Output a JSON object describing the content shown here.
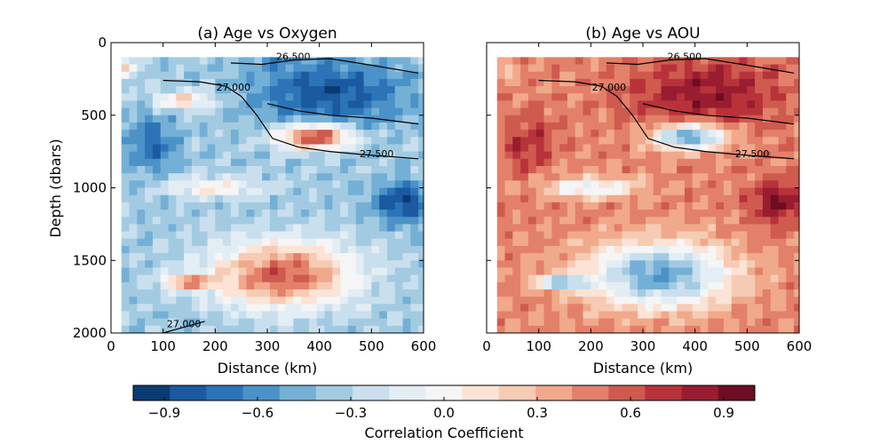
{
  "colors": {
    "diverging_scale": [
      "#0b3b72",
      "#1b5aa1",
      "#2c74b8",
      "#4a92c7",
      "#74b0d6",
      "#a2cbe2",
      "#c9dfee",
      "#e3edf4",
      "#f5f5f5",
      "#fbe3d6",
      "#f6cbb3",
      "#f0a98a",
      "#e3806a",
      "#cf5a4e",
      "#b8323a",
      "#991d30",
      "#6e0d23"
    ],
    "contour": "#000000"
  },
  "chart_data": [
    {
      "type": "heatmap",
      "title": "(a) Age vs Oxygen",
      "xlabel": "Distance (km)",
      "ylabel": "Depth (dbars)",
      "xlim": [
        0,
        600
      ],
      "ylim": [
        2000,
        0
      ],
      "xticks": [
        0,
        100,
        200,
        300,
        400,
        500,
        600
      ],
      "yticks": [
        0,
        500,
        1000,
        1500,
        2000
      ],
      "data_x_range": [
        20,
        600
      ],
      "data_y_range": [
        100,
        2000
      ],
      "background_value": -0.35,
      "features": [
        {
          "x": 420,
          "y": 350,
          "rx": 180,
          "ry": 300,
          "value": -0.85
        },
        {
          "x": 330,
          "y": 150,
          "rx": 80,
          "ry": 70,
          "value": -0.6
        },
        {
          "x": 560,
          "y": 1100,
          "rx": 70,
          "ry": 180,
          "value": -0.9
        },
        {
          "x": 80,
          "y": 700,
          "rx": 60,
          "ry": 250,
          "value": -0.75
        },
        {
          "x": 390,
          "y": 650,
          "rx": 90,
          "ry": 110,
          "value": 0.65
        },
        {
          "x": 140,
          "y": 400,
          "rx": 70,
          "ry": 80,
          "value": 0.2
        },
        {
          "x": 200,
          "y": 1000,
          "rx": 110,
          "ry": 90,
          "value": 0.1
        },
        {
          "x": 330,
          "y": 1600,
          "rx": 170,
          "ry": 280,
          "value": 0.6
        },
        {
          "x": 150,
          "y": 1650,
          "rx": 60,
          "ry": 60,
          "value": 0.6
        },
        {
          "x": 130,
          "y": 1900,
          "rx": 60,
          "ry": 80,
          "value": -0.4
        },
        {
          "x": 30,
          "y": 180,
          "rx": 30,
          "ry": 80,
          "value": 0.1
        }
      ],
      "contours": [
        {
          "label": "26.500",
          "points": [
            [
              230,
              140
            ],
            [
              290,
              150
            ],
            [
              350,
              120
            ],
            [
              420,
              110
            ],
            [
              490,
              150
            ],
            [
              590,
              210
            ]
          ],
          "label_at": [
            350,
            120
          ]
        },
        {
          "label": "27.000",
          "points": [
            [
              100,
              260
            ],
            [
              170,
              270
            ],
            [
              220,
              300
            ],
            [
              250,
              370
            ],
            [
              280,
              500
            ],
            [
              310,
              660
            ],
            [
              360,
              720
            ],
            [
              420,
              750
            ],
            [
              480,
              770
            ],
            [
              590,
              800
            ]
          ],
          "label_at": [
            235,
            330
          ]
        },
        {
          "label": "27.500",
          "points": [
            [
              300,
              420
            ],
            [
              360,
              470
            ],
            [
              420,
              500
            ],
            [
              500,
              520
            ],
            [
              590,
              560
            ]
          ],
          "label_at": [
            510,
            790
          ]
        },
        {
          "label": "27.000",
          "points": [
            [
              100,
              2000
            ],
            [
              130,
              1970
            ],
            [
              180,
              1920
            ]
          ],
          "label_at": [
            140,
            1960
          ]
        }
      ]
    },
    {
      "type": "heatmap",
      "title": "(b) Age vs AOU",
      "xlabel": "Distance (km)",
      "ylabel": "",
      "xlim": [
        0,
        600
      ],
      "ylim": [
        2000,
        0
      ],
      "xticks": [
        0,
        100,
        200,
        300,
        400,
        500,
        600
      ],
      "yticks": [],
      "data_x_range": [
        20,
        600
      ],
      "data_y_range": [
        100,
        2000
      ],
      "background_value": 0.45,
      "features": [
        {
          "x": 420,
          "y": 350,
          "rx": 180,
          "ry": 300,
          "value": 0.85
        },
        {
          "x": 560,
          "y": 1100,
          "rx": 70,
          "ry": 180,
          "value": 0.9
        },
        {
          "x": 80,
          "y": 700,
          "rx": 60,
          "ry": 250,
          "value": 0.75
        },
        {
          "x": 390,
          "y": 650,
          "rx": 90,
          "ry": 110,
          "value": -0.55
        },
        {
          "x": 200,
          "y": 1000,
          "rx": 110,
          "ry": 90,
          "value": -0.1
        },
        {
          "x": 330,
          "y": 1600,
          "rx": 170,
          "ry": 280,
          "value": -0.55
        },
        {
          "x": 150,
          "y": 1650,
          "rx": 60,
          "ry": 60,
          "value": -0.6
        },
        {
          "x": 130,
          "y": 1900,
          "rx": 60,
          "ry": 80,
          "value": 0.4
        },
        {
          "x": 30,
          "y": 180,
          "rx": 30,
          "ry": 80,
          "value": 0.2
        }
      ],
      "contours": [
        {
          "label": "26.500",
          "points": [
            [
              230,
              140
            ],
            [
              290,
              150
            ],
            [
              350,
              120
            ],
            [
              420,
              110
            ],
            [
              490,
              150
            ],
            [
              590,
              210
            ]
          ],
          "label_at": [
            380,
            120
          ]
        },
        {
          "label": "27.000",
          "points": [
            [
              100,
              260
            ],
            [
              170,
              270
            ],
            [
              220,
              300
            ],
            [
              250,
              370
            ],
            [
              280,
              500
            ],
            [
              310,
              660
            ],
            [
              360,
              720
            ],
            [
              420,
              750
            ],
            [
              480,
              770
            ],
            [
              590,
              800
            ]
          ],
          "label_at": [
            235,
            330
          ]
        },
        {
          "label": "27.500",
          "points": [
            [
              300,
              420
            ],
            [
              360,
              470
            ],
            [
              420,
              500
            ],
            [
              500,
              520
            ],
            [
              590,
              560
            ]
          ],
          "label_at": [
            510,
            790
          ]
        }
      ]
    }
  ],
  "colorbar": {
    "label": "Correlation Coefficient",
    "range": [
      -1.0,
      1.0
    ],
    "levels": 17,
    "ticks": [
      "−0.9",
      "−0.6",
      "−0.3",
      "0.0",
      "0.3",
      "0.6",
      "0.9"
    ],
    "tick_values": [
      -0.9,
      -0.6,
      -0.3,
      0.0,
      0.3,
      0.6,
      0.9
    ]
  }
}
